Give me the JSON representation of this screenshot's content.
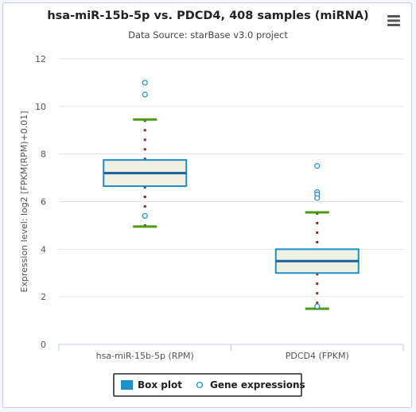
{
  "chart_data": {
    "type": "boxplot",
    "title": "hsa-miR-15b-5p vs. PDCD4, 408 samples (miRNA)",
    "subtitle": "Data Source: starBase v3.0 project",
    "ylabel": "Expression level: log2 [FPKM(RPM)+0.01]",
    "xlabel": "",
    "categories": [
      "hsa-miR-15b-5p (RPM)",
      "PDCD4 (FPKM)"
    ],
    "ylim": [
      0,
      12
    ],
    "yticks": [
      0,
      2,
      4,
      6,
      8,
      10,
      12
    ],
    "grid": true,
    "legend_position": "bottom-center",
    "series": [
      {
        "name": "Box plot",
        "color": "#1a8fc9",
        "boxes": [
          {
            "low": 4.95,
            "q1": 6.65,
            "median": 7.2,
            "q3": 7.75,
            "high": 9.45
          },
          {
            "low": 1.5,
            "q1": 3.0,
            "median": 3.5,
            "q3": 4.0,
            "high": 5.55
          }
        ]
      },
      {
        "name": "Gene expressions",
        "color": "#1a8fc9",
        "points": [
          {
            "category": 0,
            "y": 11.0
          },
          {
            "category": 0,
            "y": 10.5
          },
          {
            "category": 0,
            "y": 5.4
          },
          {
            "category": 1,
            "y": 7.5
          },
          {
            "category": 1,
            "y": 6.4
          },
          {
            "category": 1,
            "y": 6.3
          },
          {
            "category": 1,
            "y": 6.15
          },
          {
            "category": 1,
            "y": 1.6
          }
        ]
      }
    ],
    "colors": {
      "box_fill": "#eff0e2",
      "box_stroke": "#1a8fc9",
      "median": "#1a5f9e",
      "whisker_cap": "#4a9a12",
      "whisker_stem": "#9a2a12",
      "grid": "#e3e3e3",
      "axis": "#c0c8d8"
    }
  },
  "menu_icon": "hamburger-menu-icon"
}
